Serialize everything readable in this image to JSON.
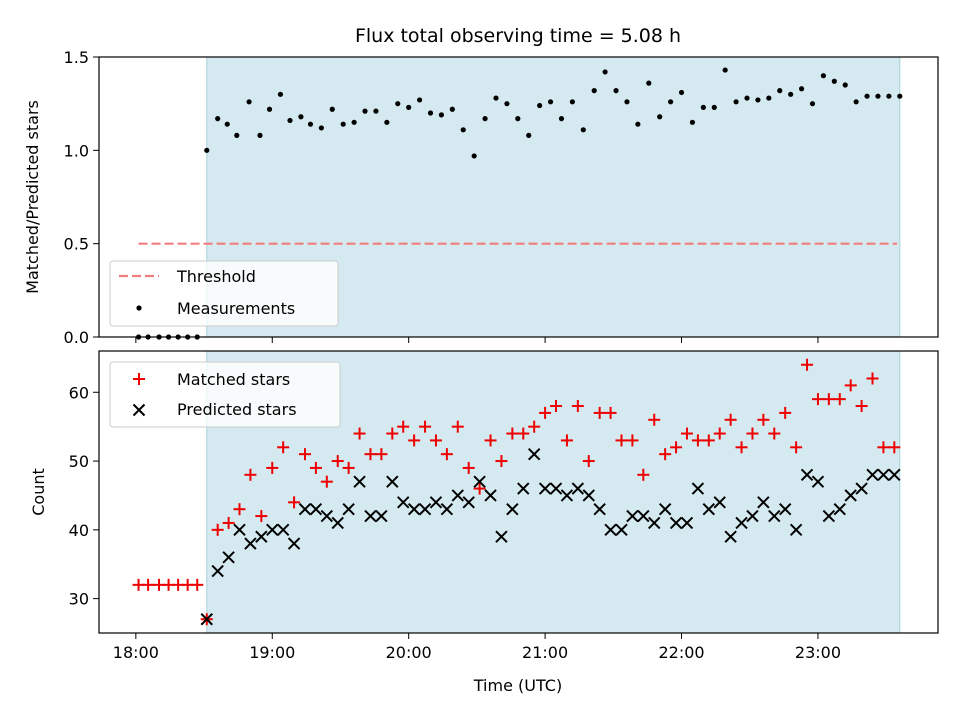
{
  "colors": {
    "span": "#d4eaf0",
    "span_edge": "#a8d2da",
    "threshold": "#f07e7e",
    "measurement": "#000000",
    "matched": "#ee0000",
    "predicted": "#000000"
  },
  "chart_data": [
    {
      "type": "scatter",
      "title": "Flux total observing time = 5.08 h",
      "xlabel": "",
      "ylabel": "Matched/Predicted stars",
      "xlim": [
        17.73,
        23.88
      ],
      "ylim": [
        0.0,
        1.5
      ],
      "y_ticks": [
        0.0,
        0.5,
        1.0,
        1.5
      ],
      "y_tick_labels": [
        "0.0",
        "0.5",
        "1.0",
        "1.5"
      ],
      "x_ticks": [
        18,
        19,
        20,
        21,
        22,
        23
      ],
      "highlight_span": [
        18.52,
        23.6
      ],
      "legend_position": "lower-left",
      "threshold": {
        "name": "Threshold",
        "value": 0.5,
        "x_range": [
          18.02,
          23.58
        ]
      },
      "series": [
        {
          "name": "Measurements",
          "x": [
            18.02,
            18.09,
            18.17,
            18.24,
            18.31,
            18.38,
            18.45,
            18.52,
            18.6,
            18.67,
            18.74,
            18.83,
            18.91,
            18.98,
            19.06,
            19.13,
            19.21,
            19.28,
            19.36,
            19.44,
            19.52,
            19.6,
            19.68,
            19.76,
            19.84,
            19.92,
            20.0,
            20.08,
            20.16,
            20.24,
            20.32,
            20.4,
            20.48,
            20.56,
            20.64,
            20.72,
            20.8,
            20.88,
            20.96,
            21.04,
            21.12,
            21.2,
            21.28,
            21.36,
            21.44,
            21.52,
            21.6,
            21.68,
            21.76,
            21.84,
            21.92,
            22.0,
            22.08,
            22.16,
            22.24,
            22.32,
            22.4,
            22.48,
            22.56,
            22.64,
            22.72,
            22.8,
            22.88,
            22.96,
            23.04,
            23.12,
            23.2,
            23.28,
            23.36,
            23.44,
            23.52,
            23.6
          ],
          "y": [
            0.0,
            0.0,
            0.0,
            0.0,
            0.0,
            0.0,
            0.0,
            1.0,
            1.17,
            1.14,
            1.08,
            1.26,
            1.08,
            1.22,
            1.3,
            1.16,
            1.18,
            1.14,
            1.12,
            1.22,
            1.14,
            1.15,
            1.21,
            1.21,
            1.15,
            1.25,
            1.23,
            1.27,
            1.2,
            1.19,
            1.22,
            1.11,
            0.97,
            1.17,
            1.28,
            1.25,
            1.17,
            1.08,
            1.24,
            1.26,
            1.17,
            1.26,
            1.11,
            1.32,
            1.42,
            1.32,
            1.26,
            1.14,
            1.36,
            1.18,
            1.26,
            1.31,
            1.15,
            1.23,
            1.23,
            1.43,
            1.26,
            1.28,
            1.27,
            1.28,
            1.32,
            1.3,
            1.33,
            1.25,
            1.4,
            1.37,
            1.35,
            1.26,
            1.29,
            1.29,
            1.29,
            1.29
          ]
        }
      ]
    },
    {
      "type": "scatter",
      "title": "",
      "xlabel": "Time (UTC)",
      "ylabel": "Count",
      "xlim": [
        17.73,
        23.88
      ],
      "ylim": [
        25,
        66
      ],
      "y_ticks": [
        30,
        40,
        50,
        60
      ],
      "y_tick_labels": [
        "30",
        "40",
        "50",
        "60"
      ],
      "x_ticks": [
        18,
        19,
        20,
        21,
        22,
        23
      ],
      "x_tick_labels": [
        "18:00",
        "19:00",
        "20:00",
        "21:00",
        "22:00",
        "23:00"
      ],
      "highlight_span": [
        18.52,
        23.6
      ],
      "legend_position": "upper-left",
      "series": [
        {
          "name": "Matched stars",
          "marker": "plus",
          "x": [
            18.02,
            18.09,
            18.17,
            18.24,
            18.31,
            18.38,
            18.45,
            18.52,
            18.6,
            18.68,
            18.76,
            18.84,
            18.92,
            19.0,
            19.08,
            19.16,
            19.24,
            19.32,
            19.4,
            19.48,
            19.56,
            19.64,
            19.72,
            19.8,
            19.88,
            19.96,
            20.04,
            20.12,
            20.2,
            20.28,
            20.36,
            20.44,
            20.52,
            20.6,
            20.68,
            20.76,
            20.84,
            20.92,
            21.0,
            21.08,
            21.16,
            21.24,
            21.32,
            21.4,
            21.48,
            21.56,
            21.64,
            21.72,
            21.8,
            21.88,
            21.96,
            22.04,
            22.12,
            22.2,
            22.28,
            22.36,
            22.44,
            22.52,
            22.6,
            22.68,
            22.76,
            22.84,
            22.92,
            23.0,
            23.08,
            23.16,
            23.24,
            23.32,
            23.4,
            23.48,
            23.56
          ],
          "y": [
            32,
            32,
            32,
            32,
            32,
            32,
            32,
            27,
            40,
            41,
            43,
            48,
            42,
            49,
            52,
            44,
            51,
            49,
            47,
            50,
            49,
            54,
            51,
            51,
            54,
            55,
            53,
            55,
            53,
            51,
            55,
            49,
            46,
            53,
            50,
            54,
            54,
            55,
            57,
            58,
            53,
            58,
            50,
            57,
            57,
            53,
            53,
            48,
            56,
            51,
            52,
            54,
            53,
            53,
            54,
            56,
            52,
            54,
            56,
            54,
            57,
            52,
            64,
            59,
            59,
            59,
            61,
            58,
            62,
            52,
            52
          ]
        },
        {
          "name": "Predicted stars",
          "marker": "x",
          "x": [
            18.52,
            18.6,
            18.68,
            18.76,
            18.84,
            18.92,
            19.0,
            19.08,
            19.16,
            19.24,
            19.32,
            19.4,
            19.48,
            19.56,
            19.64,
            19.72,
            19.8,
            19.88,
            19.96,
            20.04,
            20.12,
            20.2,
            20.28,
            20.36,
            20.44,
            20.52,
            20.6,
            20.68,
            20.76,
            20.84,
            20.92,
            21.0,
            21.08,
            21.16,
            21.24,
            21.32,
            21.4,
            21.48,
            21.56,
            21.64,
            21.72,
            21.8,
            21.88,
            21.96,
            22.04,
            22.12,
            22.2,
            22.28,
            22.36,
            22.44,
            22.52,
            22.6,
            22.68,
            22.76,
            22.84,
            22.92,
            23.0,
            23.08,
            23.16,
            23.24,
            23.32,
            23.4,
            23.48,
            23.56
          ],
          "y": [
            27,
            34,
            36,
            40,
            38,
            39,
            40,
            40,
            38,
            43,
            43,
            42,
            41,
            43,
            47,
            42,
            42,
            47,
            44,
            43,
            43,
            44,
            43,
            45,
            44,
            47,
            45,
            39,
            43,
            46,
            51,
            46,
            46,
            45,
            46,
            45,
            43,
            40,
            40,
            42,
            42,
            41,
            43,
            41,
            41,
            46,
            43,
            44,
            39,
            41,
            42,
            44,
            42,
            43,
            40,
            48,
            47,
            42,
            43,
            45,
            46,
            48,
            48,
            48
          ]
        }
      ]
    }
  ]
}
